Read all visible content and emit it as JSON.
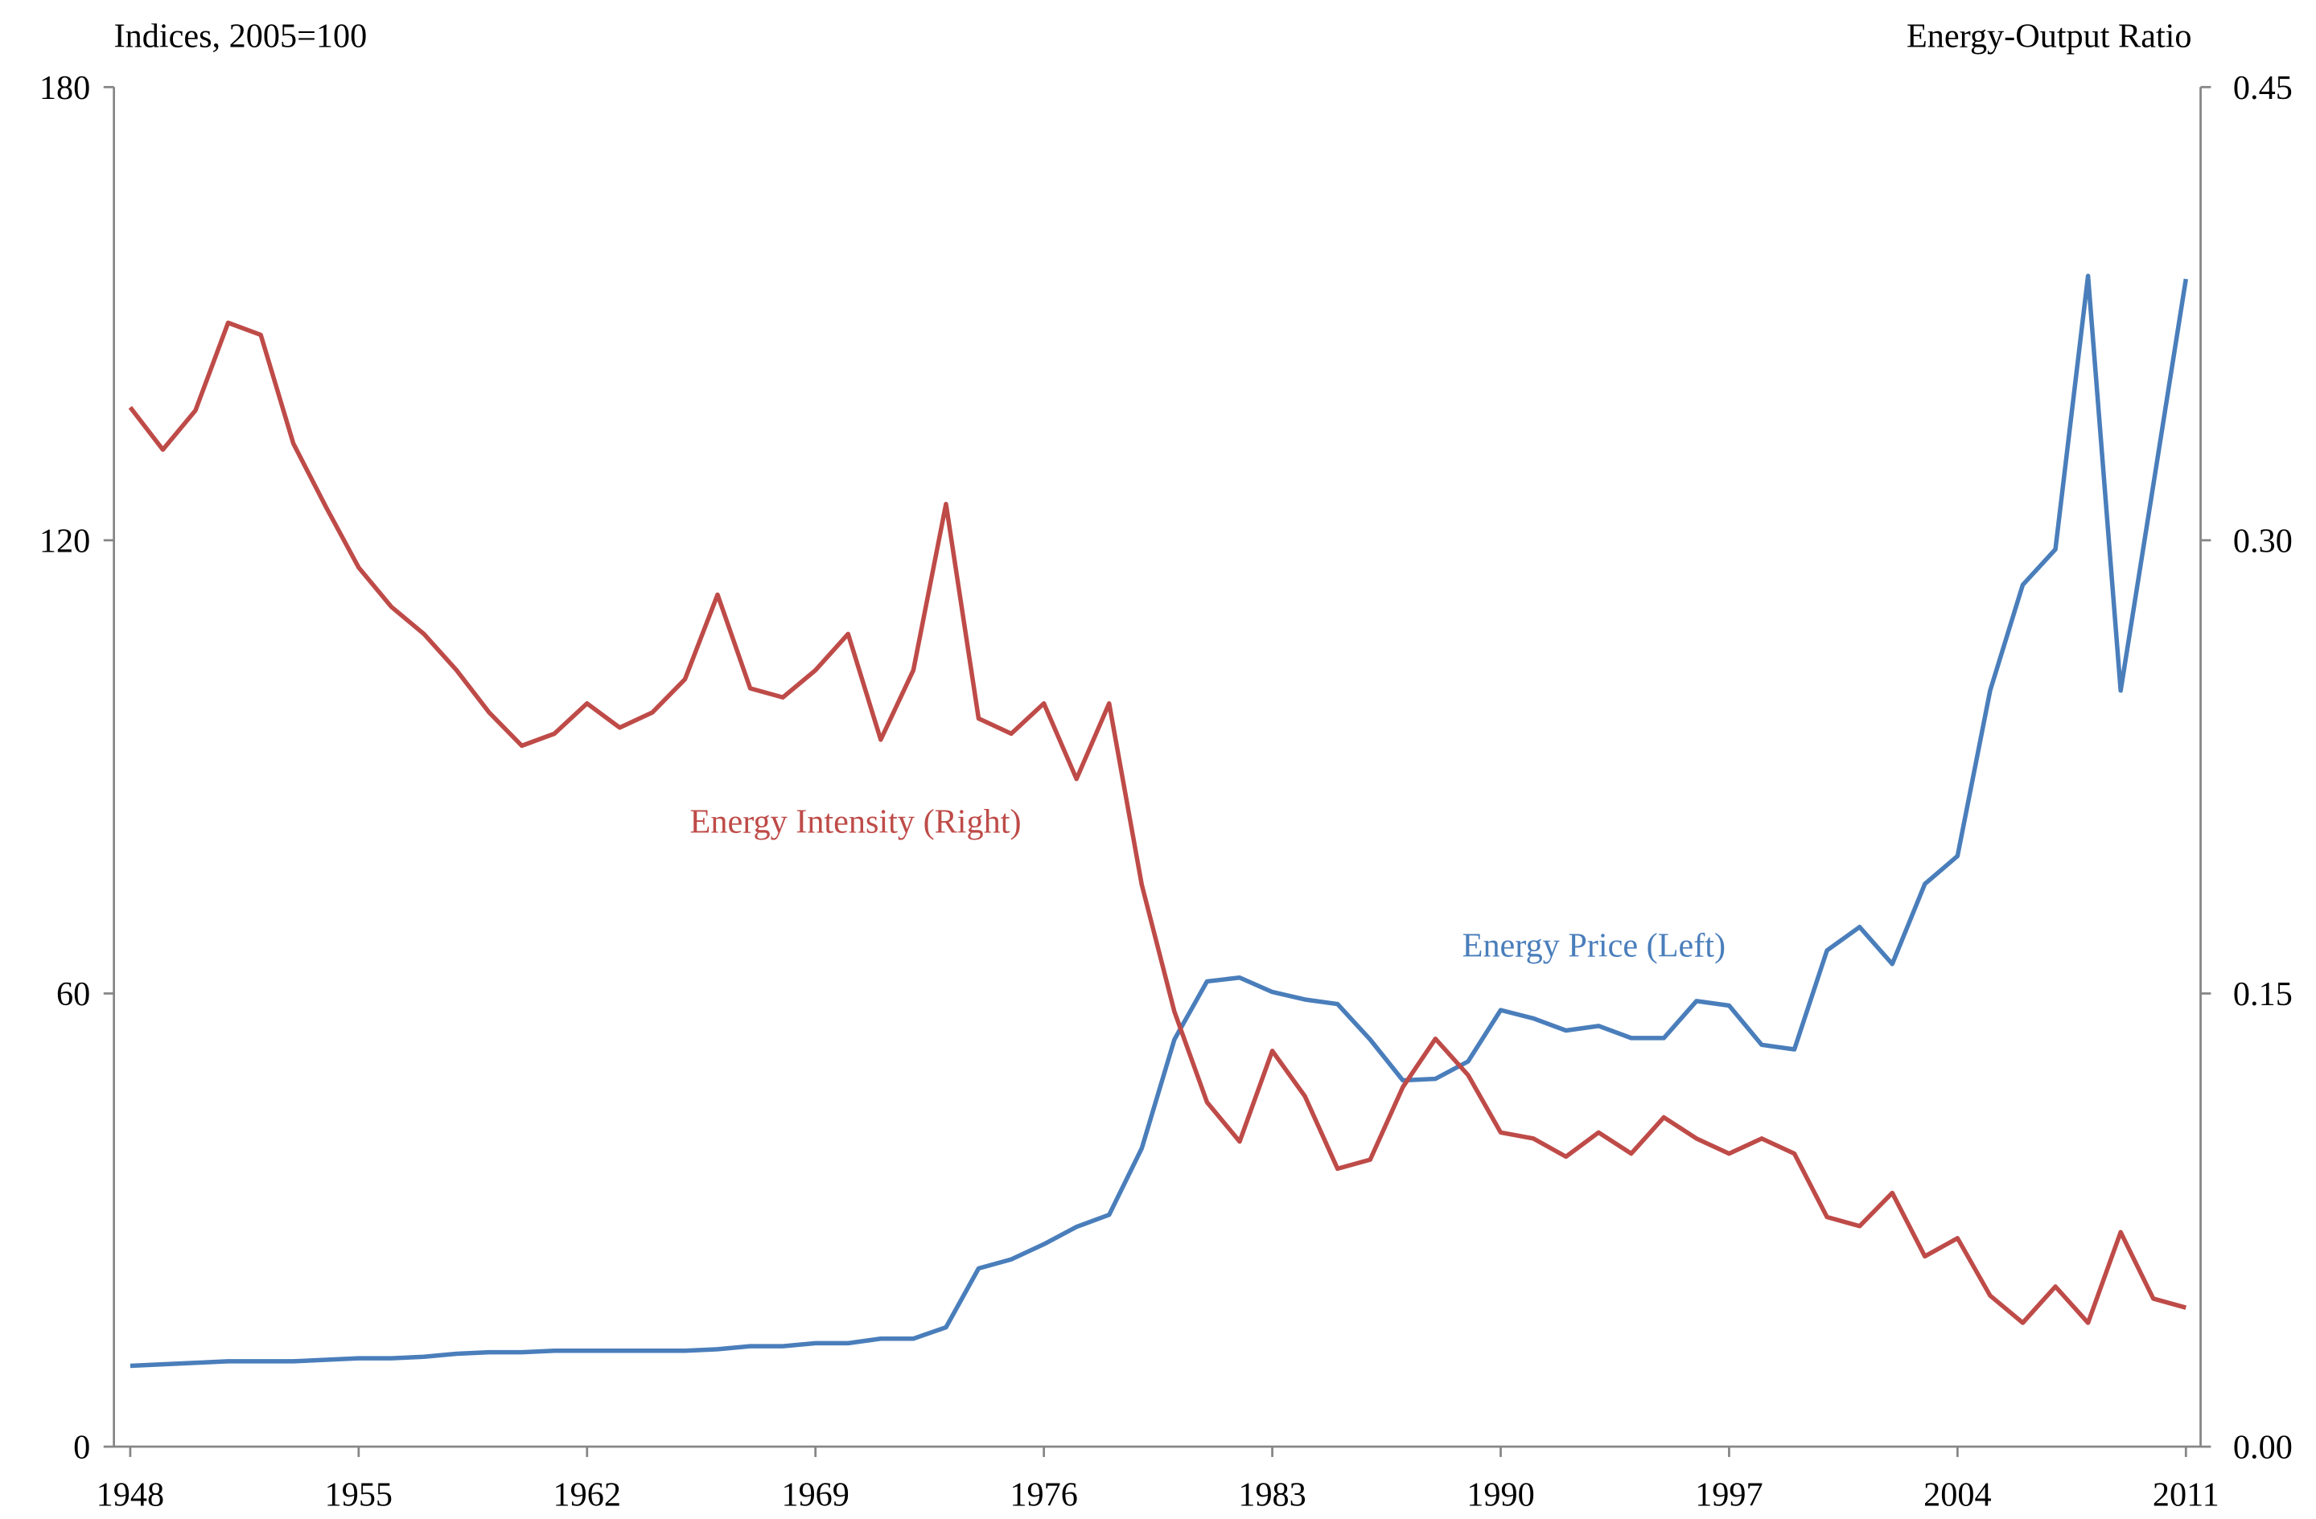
{
  "chart_data": {
    "type": "line",
    "y_axis_label": "Indices, 2005=100",
    "y2_axis_label": "Energy-Output Ratio",
    "x": [
      1948,
      1949,
      1950,
      1951,
      1952,
      1953,
      1954,
      1955,
      1956,
      1957,
      1958,
      1959,
      1960,
      1961,
      1962,
      1963,
      1964,
      1965,
      1966,
      1967,
      1968,
      1969,
      1970,
      1971,
      1972,
      1973,
      1974,
      1975,
      1976,
      1977,
      1978,
      1979,
      1980,
      1981,
      1982,
      1983,
      1984,
      1985,
      1986,
      1987,
      1988,
      1989,
      1990,
      1991,
      1992,
      1993,
      1994,
      1995,
      1996,
      1997,
      1998,
      1999,
      2000,
      2001,
      2002,
      2003,
      2004,
      2005,
      2006,
      2007,
      2008,
      2009,
      2010,
      2011
    ],
    "series": [
      {
        "name": "Energy Price (Left)",
        "color": "#4a7ebb",
        "axis": "y",
        "values": [
          10.7,
          10.9,
          11.1,
          11.3,
          11.3,
          11.3,
          11.5,
          11.7,
          11.7,
          11.9,
          12.3,
          12.5,
          12.5,
          12.7,
          12.7,
          12.7,
          12.7,
          12.7,
          12.9,
          13.3,
          13.3,
          13.7,
          13.7,
          14.3,
          14.3,
          15.8,
          23.6,
          24.8,
          26.8,
          29.1,
          30.7,
          39.5,
          53.9,
          61.6,
          62.1,
          60.2,
          59.2,
          58.6,
          53.9,
          48.5,
          48.7,
          51.0,
          57.8,
          56.7,
          55.1,
          55.7,
          54.1,
          54.1,
          59.0,
          58.4,
          53.2,
          52.6,
          65.7,
          68.8,
          63.9,
          74.5,
          78.2,
          100.1,
          114.1,
          118.8,
          155.0,
          100.1,
          127.3,
          154.6
        ]
      },
      {
        "name": "Energy Intensity (Right)",
        "color": "#be4b48",
        "axis": "y2",
        "values": [
          0.344,
          0.33,
          0.343,
          0.372,
          0.368,
          0.332,
          0.311,
          0.291,
          0.278,
          0.269,
          0.257,
          0.243,
          0.232,
          0.236,
          0.246,
          0.238,
          0.243,
          0.254,
          0.282,
          0.251,
          0.248,
          0.257,
          0.269,
          0.234,
          0.257,
          0.312,
          0.241,
          0.236,
          0.246,
          0.221,
          0.246,
          0.186,
          0.144,
          0.114,
          0.101,
          0.131,
          0.116,
          0.092,
          0.095,
          0.119,
          0.135,
          0.123,
          0.104,
          0.102,
          0.096,
          0.104,
          0.097,
          0.109,
          0.102,
          0.097,
          0.102,
          0.097,
          0.076,
          0.073,
          0.084,
          0.063,
          0.069,
          0.05,
          0.041,
          0.053,
          0.041,
          0.071,
          0.049,
          0.046
        ]
      }
    ],
    "xlim": [
      1947.5,
      2011.45
    ],
    "xticks": [
      1948,
      1955,
      1962,
      1969,
      1976,
      1983,
      1990,
      1997,
      2004,
      2011
    ],
    "ylim": [
      0,
      180
    ],
    "yticks": [
      0,
      60,
      120,
      180
    ],
    "y2lim": [
      0,
      0.45
    ],
    "y2ticks": [
      {
        "value": 0,
        "label": "0.00"
      },
      {
        "value": 0.15,
        "label": "0.15"
      },
      {
        "value": 0.3,
        "label": "0.30"
      },
      {
        "value": 0.45,
        "label": "0.45"
      }
    ],
    "grid": false
  }
}
